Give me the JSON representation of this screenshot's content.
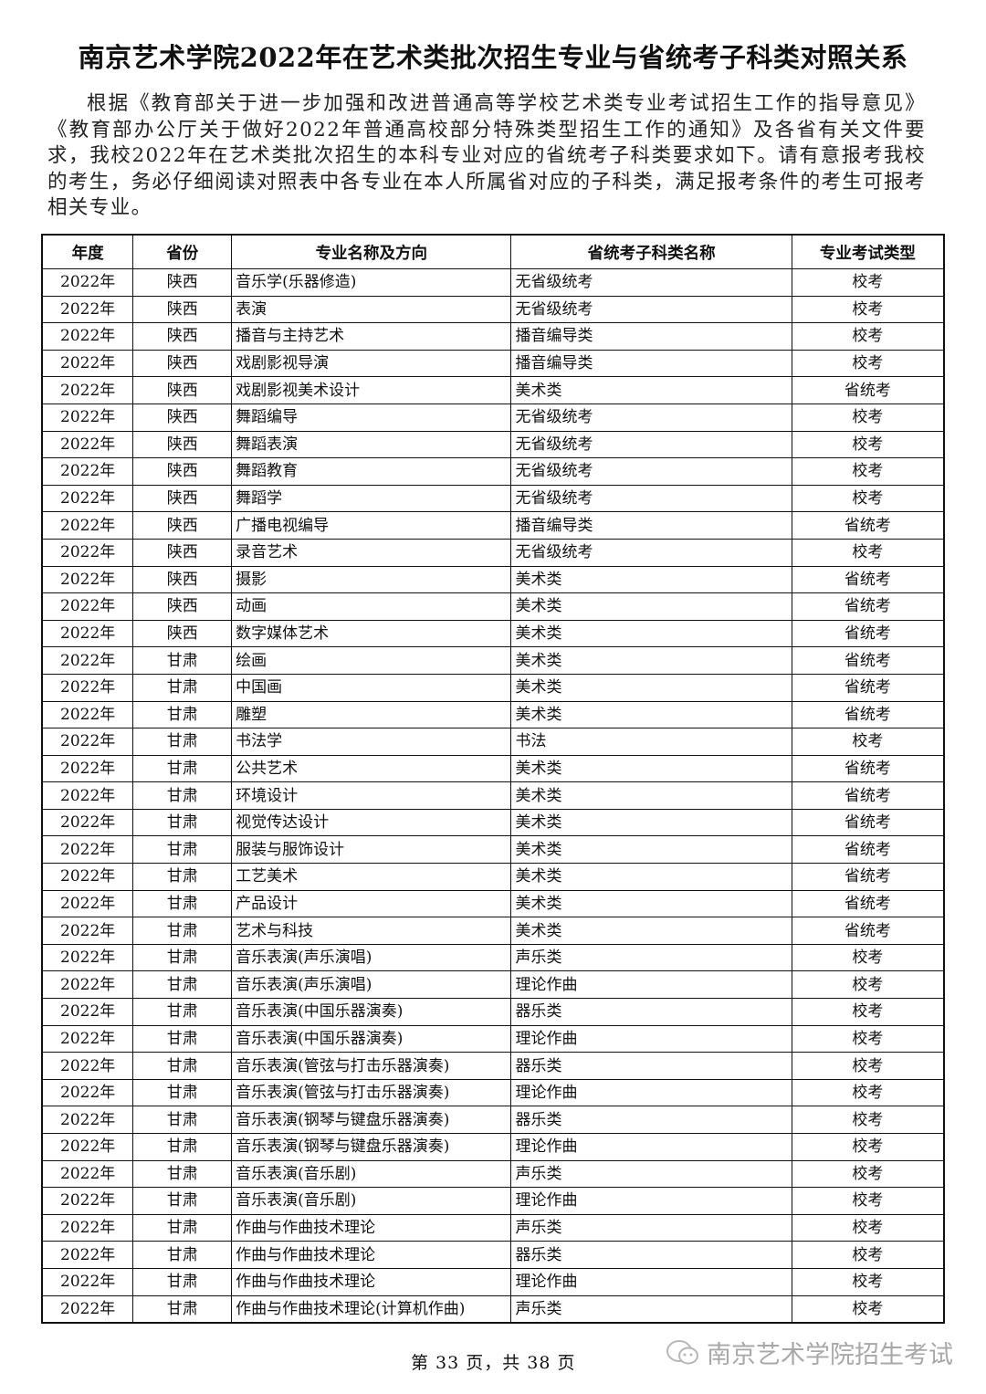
{
  "title": "南京艺术学院2022年在艺术类批次招生专业与省统考子科类对照关系",
  "intro": "根据《教育部关于进一步加强和改进普通高等学校艺术类专业考试招生工作的指导意见》《教育部办公厅关于做好2022年普通高校部分特殊类型招生工作的通知》及各省有关文件要求，我校2022年在艺术类批次招生的本科专业对应的省统考子科类要求如下。请有意报考我校的考生，务必仔细阅读对照表中各专业在本人所属省对应的子科类，满足报考条件的考生可报考相关专业。",
  "table": {
    "headers": [
      "年度",
      "省份",
      "专业名称及方向",
      "省统考子科类名称",
      "专业考试类型"
    ],
    "rows": [
      [
        "2022年",
        "陕西",
        "音乐学(乐器修造)",
        "无省级统考",
        "校考"
      ],
      [
        "2022年",
        "陕西",
        "表演",
        "无省级统考",
        "校考"
      ],
      [
        "2022年",
        "陕西",
        "播音与主持艺术",
        "播音编导类",
        "校考"
      ],
      [
        "2022年",
        "陕西",
        "戏剧影视导演",
        "播音编导类",
        "校考"
      ],
      [
        "2022年",
        "陕西",
        "戏剧影视美术设计",
        "美术类",
        "省统考"
      ],
      [
        "2022年",
        "陕西",
        "舞蹈编导",
        "无省级统考",
        "校考"
      ],
      [
        "2022年",
        "陕西",
        "舞蹈表演",
        "无省级统考",
        "校考"
      ],
      [
        "2022年",
        "陕西",
        "舞蹈教育",
        "无省级统考",
        "校考"
      ],
      [
        "2022年",
        "陕西",
        "舞蹈学",
        "无省级统考",
        "校考"
      ],
      [
        "2022年",
        "陕西",
        "广播电视编导",
        "播音编导类",
        "省统考"
      ],
      [
        "2022年",
        "陕西",
        "录音艺术",
        "无省级统考",
        "校考"
      ],
      [
        "2022年",
        "陕西",
        "摄影",
        "美术类",
        "省统考"
      ],
      [
        "2022年",
        "陕西",
        "动画",
        "美术类",
        "省统考"
      ],
      [
        "2022年",
        "陕西",
        "数字媒体艺术",
        "美术类",
        "省统考"
      ],
      [
        "2022年",
        "甘肃",
        "绘画",
        "美术类",
        "省统考"
      ],
      [
        "2022年",
        "甘肃",
        "中国画",
        "美术类",
        "省统考"
      ],
      [
        "2022年",
        "甘肃",
        "雕塑",
        "美术类",
        "省统考"
      ],
      [
        "2022年",
        "甘肃",
        "书法学",
        "书法",
        "校考"
      ],
      [
        "2022年",
        "甘肃",
        "公共艺术",
        "美术类",
        "省统考"
      ],
      [
        "2022年",
        "甘肃",
        "环境设计",
        "美术类",
        "省统考"
      ],
      [
        "2022年",
        "甘肃",
        "视觉传达设计",
        "美术类",
        "省统考"
      ],
      [
        "2022年",
        "甘肃",
        "服装与服饰设计",
        "美术类",
        "省统考"
      ],
      [
        "2022年",
        "甘肃",
        "工艺美术",
        "美术类",
        "省统考"
      ],
      [
        "2022年",
        "甘肃",
        "产品设计",
        "美术类",
        "省统考"
      ],
      [
        "2022年",
        "甘肃",
        "艺术与科技",
        "美术类",
        "省统考"
      ],
      [
        "2022年",
        "甘肃",
        "音乐表演(声乐演唱)",
        "声乐类",
        "校考"
      ],
      [
        "2022年",
        "甘肃",
        "音乐表演(声乐演唱)",
        "理论作曲",
        "校考"
      ],
      [
        "2022年",
        "甘肃",
        "音乐表演(中国乐器演奏)",
        "器乐类",
        "校考"
      ],
      [
        "2022年",
        "甘肃",
        "音乐表演(中国乐器演奏)",
        "理论作曲",
        "校考"
      ],
      [
        "2022年",
        "甘肃",
        "音乐表演(管弦与打击乐器演奏)",
        "器乐类",
        "校考"
      ],
      [
        "2022年",
        "甘肃",
        "音乐表演(管弦与打击乐器演奏)",
        "理论作曲",
        "校考"
      ],
      [
        "2022年",
        "甘肃",
        "音乐表演(钢琴与键盘乐器演奏)",
        "器乐类",
        "校考"
      ],
      [
        "2022年",
        "甘肃",
        "音乐表演(钢琴与键盘乐器演奏)",
        "理论作曲",
        "校考"
      ],
      [
        "2022年",
        "甘肃",
        "音乐表演(音乐剧)",
        "声乐类",
        "校考"
      ],
      [
        "2022年",
        "甘肃",
        "音乐表演(音乐剧)",
        "理论作曲",
        "校考"
      ],
      [
        "2022年",
        "甘肃",
        "作曲与作曲技术理论",
        "声乐类",
        "校考"
      ],
      [
        "2022年",
        "甘肃",
        "作曲与作曲技术理论",
        "器乐类",
        "校考"
      ],
      [
        "2022年",
        "甘肃",
        "作曲与作曲技术理论",
        "理论作曲",
        "校考"
      ],
      [
        "2022年",
        "甘肃",
        "作曲与作曲技术理论(计算机作曲)",
        "声乐类",
        "校考"
      ]
    ]
  },
  "footer": "第 33 页，共 38 页",
  "watermark": {
    "text": "南京艺术学院招生考试",
    "icon": "wechat-icon"
  }
}
